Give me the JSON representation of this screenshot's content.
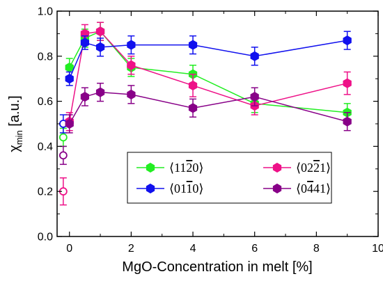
{
  "chart_data": {
    "type": "scatter",
    "xlabel": "MgO-Concentration in melt [%]",
    "ylabel_main": "χ",
    "ylabel_sub": "min",
    "ylabel_unit": "[a.u.]",
    "xlim": [
      -0.4,
      10
    ],
    "ylim": [
      0.0,
      1.0
    ],
    "xticks": [
      0,
      2,
      4,
      6,
      8,
      10
    ],
    "yticks": [
      0.0,
      0.2,
      0.4,
      0.6,
      0.8,
      1.0
    ],
    "grid": false,
    "legend_position": "lower-right",
    "series": [
      {
        "key": "s1120",
        "name_parts": [
          "⟨11",
          "2",
          "0⟩"
        ],
        "color": "#22ee22",
        "x": [
          0,
          0.5,
          1,
          2,
          4,
          6,
          9
        ],
        "y": [
          0.75,
          0.88,
          0.91,
          0.75,
          0.72,
          0.59,
          0.55
        ],
        "err": [
          0.04,
          0.04,
          0.04,
          0.04,
          0.04,
          0.04,
          0.04
        ],
        "open_x": [
          -0.2
        ],
        "open_y": [
          0.44
        ],
        "open_err": [
          0.04
        ]
      },
      {
        "key": "s0221",
        "name_parts": [
          "⟨02",
          "2",
          "1⟩"
        ],
        "color": "#ee1188",
        "x": [
          0,
          0.5,
          1,
          2,
          4,
          6,
          9
        ],
        "y": [
          0.51,
          0.9,
          0.91,
          0.76,
          0.67,
          0.58,
          0.68
        ],
        "err": [
          0.04,
          0.04,
          0.04,
          0.04,
          0.05,
          0.04,
          0.05
        ],
        "open_x": [
          -0.2
        ],
        "open_y": [
          0.2
        ],
        "open_err": [
          0.06
        ]
      },
      {
        "key": "s0110",
        "name_parts": [
          "⟨01",
          "1",
          "0⟩"
        ],
        "color": "#1111ee",
        "x": [
          0,
          0.5,
          1,
          2,
          4,
          6,
          9
        ],
        "y": [
          0.7,
          0.86,
          0.84,
          0.85,
          0.85,
          0.8,
          0.87
        ],
        "err": [
          0.03,
          0.03,
          0.04,
          0.04,
          0.04,
          0.04,
          0.04
        ],
        "open_x": [
          -0.2
        ],
        "open_y": [
          0.5
        ],
        "open_err": [
          0.04
        ]
      },
      {
        "key": "s0441",
        "name_parts": [
          "⟨0",
          "4",
          "41⟩"
        ],
        "color": "#880088",
        "x": [
          0,
          0.5,
          1,
          2,
          4,
          6,
          9
        ],
        "y": [
          0.5,
          0.62,
          0.64,
          0.63,
          0.57,
          0.62,
          0.51
        ],
        "err": [
          0.04,
          0.04,
          0.04,
          0.04,
          0.04,
          0.04,
          0.04
        ],
        "open_x": [
          -0.2
        ],
        "open_y": [
          0.36
        ],
        "open_err": [
          0.04
        ]
      }
    ]
  }
}
